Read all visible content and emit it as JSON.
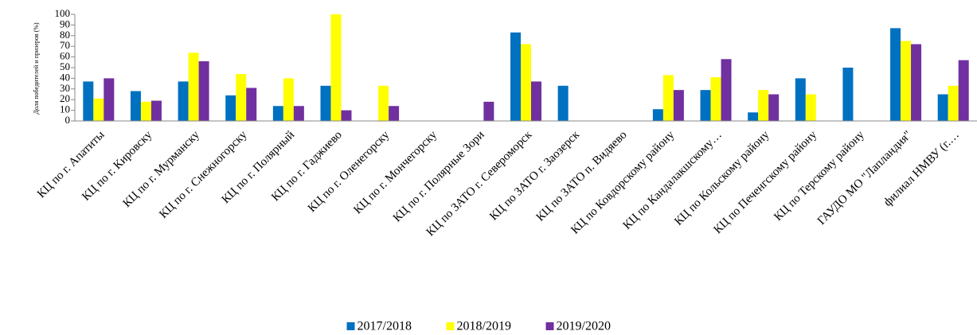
{
  "chart_data": {
    "type": "bar",
    "y_label": "Доля победителей и призеров (%)",
    "categories": [
      "КЦ по г. Апатиты",
      "КЦ по г. Кировску",
      "КЦ по г. Мурманску",
      "КЦ по г. Снежногорску",
      "КЦ по г. Полярный",
      "КЦ по г. Гаджиево",
      "КЦ по г. Оленегорску",
      "КЦ по г. Мончегорску",
      "КЦ по г. Полярные Зори",
      "КЦ по ЗАТО г. Североморск",
      "КЦ по ЗАТО г. Заозерск",
      "КЦ по ЗАТО п. Видяево",
      "КЦ по Ковдорскому району",
      "КЦ по Кандалакшскому…",
      "КЦ по Кольскому району",
      "КЦ по Печенгскому району",
      "КЦ по Терскому району",
      "ГАУДО МО \"Лапландия\"",
      "филиал НМВУ (г.…"
    ],
    "series": [
      {
        "name": "2017/2018",
        "color": "#0070c0",
        "values": [
          37,
          28,
          37,
          24,
          14,
          33,
          0,
          0,
          0,
          83,
          33,
          0,
          11,
          29,
          8,
          40,
          50,
          87,
          25
        ]
      },
      {
        "name": "2018/2019",
        "color": "#ffff00",
        "values": [
          21,
          18,
          64,
          44,
          40,
          100,
          33,
          0,
          0,
          72,
          0,
          0,
          43,
          41,
          29,
          25,
          0,
          75,
          33
        ]
      },
      {
        "name": "2019/2020",
        "color": "#7030a0",
        "values": [
          40,
          19,
          56,
          31,
          14,
          10,
          14,
          0,
          18,
          37,
          0,
          0,
          29,
          58,
          25,
          0,
          0,
          72,
          57
        ]
      }
    ],
    "ylim": [
      0,
      100
    ],
    "yticks": [
      0,
      10,
      20,
      30,
      40,
      50,
      60,
      70,
      80,
      90,
      100
    ],
    "legend": "bottom"
  }
}
